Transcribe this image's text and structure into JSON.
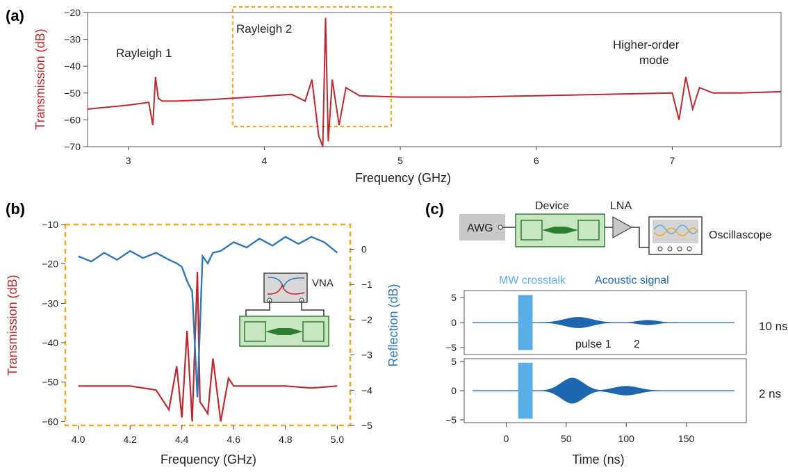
{
  "panels": {
    "a": "(a)",
    "b": "(b)",
    "c": "(c)"
  },
  "colors": {
    "red": "#c0272d",
    "blue": "#2f78b7",
    "lightblue": "#5aaee8",
    "darkblue": "#1f66b0",
    "orange": "#f5a623",
    "green": "#2e7d32",
    "lightgreen": "#c8e6c0",
    "gray": "#c8c8c8"
  },
  "chart_data": [
    {
      "id": "a",
      "type": "line",
      "xlabel": "Frequency (GHz)",
      "ylabel": "Transmission (dB)",
      "xlim": [
        2.7,
        7.8
      ],
      "ylim": [
        -70,
        -20
      ],
      "xticks": [
        "3",
        "4",
        "5",
        "6",
        "7"
      ],
      "yticks": [
        "−20",
        "−30",
        "−40",
        "−50",
        "−60",
        "−70"
      ],
      "annotations": {
        "r1": "Rayleigh 1",
        "r2": "Rayleigh 2",
        "hom1": "Higher-order",
        "hom2": "mode"
      },
      "highlight_box_x": [
        3.85,
        5.1
      ],
      "highlight_box_y": [
        -68,
        -19
      ],
      "series": [
        {
          "x": [
            2.7,
            3.0,
            3.15,
            3.18,
            3.2,
            3.22,
            3.25,
            3.35,
            3.6,
            3.9,
            4.2,
            4.3,
            4.35,
            4.4,
            4.43,
            4.45,
            4.47,
            4.5,
            4.55,
            4.6,
            4.7,
            5.0,
            5.5,
            6.0,
            6.5,
            7.0,
            7.05,
            7.1,
            7.15,
            7.2,
            7.3,
            7.5,
            7.8
          ],
          "y": [
            -56,
            -54.5,
            -53.5,
            -62,
            -44,
            -52,
            -53,
            -53,
            -52.5,
            -51.5,
            -50.5,
            -53,
            -45,
            -66,
            -70,
            -22,
            -68,
            -45,
            -62,
            -48,
            -51,
            -51.5,
            -51.5,
            -51,
            -50.5,
            -50,
            -60,
            -44,
            -56,
            -48,
            -50,
            -50,
            -49.5
          ]
        }
      ]
    },
    {
      "id": "b",
      "type": "line",
      "xlabel": "Frequency (GHz)",
      "ylabel_left": "Transmission (dB)",
      "ylabel_right": "Reflection (dB)",
      "xlim": [
        3.95,
        5.05
      ],
      "ylim_left": [
        -61,
        -10
      ],
      "ylim_right": [
        -5,
        0.7
      ],
      "xticks": [
        "4.0",
        "4.2",
        "4.4",
        "4.6",
        "4.8",
        "5.0"
      ],
      "yticks_left": [
        "−10",
        "−20",
        "−30",
        "−40",
        "−50",
        "−60"
      ],
      "yticks_right": [
        "0",
        "−1",
        "−2",
        "−3",
        "−4",
        "−5"
      ],
      "inset_label": "VNA",
      "series": [
        {
          "name": "Transmission",
          "x": [
            4.0,
            4.1,
            4.2,
            4.3,
            4.35,
            4.38,
            4.4,
            4.42,
            4.44,
            4.46,
            4.47,
            4.5,
            4.52,
            4.55,
            4.58,
            4.6,
            4.7,
            4.8,
            4.9,
            5.0
          ],
          "y": [
            -51,
            -51,
            -51,
            -52,
            -57,
            -46,
            -59,
            -37,
            -60,
            -22,
            -55,
            -58,
            -44,
            -60,
            -49,
            -51,
            -51,
            -51,
            -51.5,
            -51
          ]
        },
        {
          "name": "Reflection",
          "x": [
            4.0,
            4.05,
            4.1,
            4.15,
            4.2,
            4.25,
            4.3,
            4.35,
            4.38,
            4.4,
            4.42,
            4.44,
            4.46,
            4.48,
            4.5,
            4.52,
            4.55,
            4.6,
            4.65,
            4.7,
            4.75,
            4.8,
            4.85,
            4.9,
            4.95,
            5.0
          ],
          "y": [
            -0.2,
            -0.35,
            -0.1,
            -0.3,
            -0.05,
            -0.25,
            -0.1,
            -0.3,
            -0.4,
            -0.5,
            -0.9,
            -1.2,
            -4.2,
            -0.2,
            -0.4,
            -0.1,
            -0.05,
            0.2,
            0.05,
            0.3,
            0.1,
            0.35,
            0.15,
            0.35,
            0.2,
            -0.1
          ]
        }
      ]
    },
    {
      "id": "c",
      "type": "line",
      "xlabel": "Time (ns)",
      "xlim": [
        -35,
        200
      ],
      "ylim": [
        -5,
        5
      ],
      "xticks": [
        "0",
        "50",
        "100",
        "150"
      ],
      "yticks_top": [
        "5",
        "0",
        "−5"
      ],
      "yticks_bottom": [
        "5",
        "0",
        "−5"
      ],
      "schematic": {
        "awg": "AWG",
        "device": "Device",
        "lna": "LNA",
        "osc": "Oscillascope"
      },
      "legend": {
        "crosstalk": "MW crosstalk",
        "acoustic": "Acoustic signal"
      },
      "traces": [
        {
          "label": "10 ns",
          "pulse_labels": [
            "pulse 1",
            "2"
          ],
          "crosstalk_amp": 5.5,
          "acoustic_centers": [
            60,
            118
          ],
          "acoustic_amps": [
            1.1,
            0.5
          ],
          "acoustic_widths": [
            30,
            22
          ]
        },
        {
          "label": "2 ns",
          "crosstalk_amp": 4.8,
          "acoustic_centers": [
            55,
            100
          ],
          "acoustic_amps": [
            2.2,
            0.8
          ],
          "acoustic_widths": [
            24,
            28
          ]
        }
      ]
    }
  ]
}
